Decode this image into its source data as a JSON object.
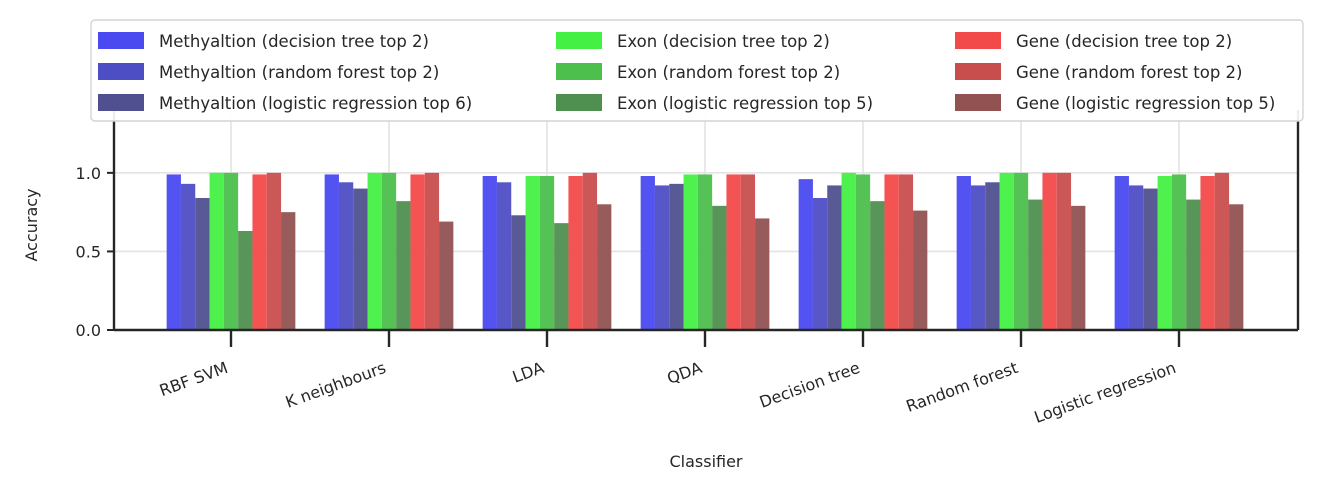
{
  "chart_data": {
    "type": "bar",
    "title": "",
    "xlabel": "Classifier",
    "ylabel": "Accuracy",
    "ylim": [
      0,
      1.4
    ],
    "yticks": [
      "0.0",
      "0.5",
      "1.0"
    ],
    "grid": true,
    "legend_position": "top",
    "categories": [
      "RBF SVM",
      "K neighbours",
      "LDA",
      "QDA",
      "Decision tree",
      "Random forest",
      "Logistic regression"
    ],
    "series": [
      {
        "name": "Methyaltion (decision tree top 2)",
        "color": "#4a4af0",
        "values": [
          0.99,
          0.99,
          0.98,
          0.98,
          0.96,
          0.98,
          0.98
        ]
      },
      {
        "name": "Methyaltion (random forest top 2)",
        "color": "#4e4ec4",
        "values": [
          0.93,
          0.94,
          0.94,
          0.92,
          0.84,
          0.92,
          0.92
        ]
      },
      {
        "name": "Methyaltion (logistic regression top 6)",
        "color": "#505090",
        "values": [
          0.84,
          0.9,
          0.73,
          0.93,
          0.92,
          0.94,
          0.9
        ]
      },
      {
        "name": "Exon (decision tree top 2)",
        "color": "#44f044",
        "values": [
          1.0,
          1.0,
          0.98,
          0.99,
          1.0,
          1.0,
          0.98
        ]
      },
      {
        "name": "Exon (random forest top 2)",
        "color": "#4cbf4c",
        "values": [
          1.0,
          1.0,
          0.98,
          0.99,
          0.99,
          1.0,
          0.99
        ]
      },
      {
        "name": "Exon (logistic regression top 5)",
        "color": "#4f8f4f",
        "values": [
          0.63,
          0.82,
          0.68,
          0.79,
          0.82,
          0.83,
          0.83
        ]
      },
      {
        "name": "Gene (decision tree top 2)",
        "color": "#f24a4a",
        "values": [
          0.99,
          0.99,
          0.98,
          0.99,
          0.99,
          1.0,
          0.98
        ]
      },
      {
        "name": "Gene (random forest top 2)",
        "color": "#c84e4e",
        "values": [
          1.0,
          1.0,
          1.0,
          0.99,
          0.99,
          1.0,
          1.0
        ]
      },
      {
        "name": "Gene (logistic regression top 5)",
        "color": "#925252",
        "values": [
          0.75,
          0.69,
          0.8,
          0.71,
          0.76,
          0.79,
          0.8
        ]
      }
    ]
  }
}
